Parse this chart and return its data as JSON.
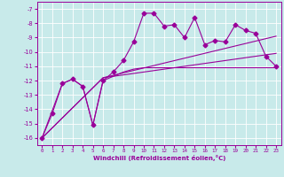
{
  "xlabel": "Windchill (Refroidissement éolien,°C)",
  "background_color": "#c8eaea",
  "grid_color": "#ffffff",
  "line_color": "#990099",
  "xlim": [
    -0.5,
    23.5
  ],
  "ylim": [
    -16.5,
    -6.5
  ],
  "xticks": [
    0,
    1,
    2,
    3,
    4,
    5,
    6,
    7,
    8,
    9,
    10,
    11,
    12,
    13,
    14,
    15,
    16,
    17,
    18,
    19,
    20,
    21,
    22,
    23
  ],
  "yticks": [
    -16,
    -15,
    -14,
    -13,
    -12,
    -11,
    -10,
    -9,
    -8,
    -7
  ],
  "series1_x": [
    0,
    1,
    2,
    3,
    4,
    5,
    6,
    7,
    8,
    9,
    10,
    11,
    12,
    13,
    14,
    15,
    16,
    17,
    18,
    19,
    20,
    21,
    22,
    23
  ],
  "series1_y": [
    -16,
    -14.3,
    -12.2,
    -11.9,
    -12.4,
    -15.1,
    -12.0,
    -11.4,
    -10.6,
    -9.3,
    -7.3,
    -7.3,
    -8.2,
    -8.1,
    -9.0,
    -7.6,
    -9.5,
    -9.2,
    -9.3,
    -8.1,
    -8.5,
    -8.7,
    -10.3,
    -11.0
  ],
  "series2_x": [
    0,
    2,
    3,
    4,
    5,
    6,
    7,
    8,
    9,
    10,
    11,
    12,
    13,
    14,
    15,
    16,
    17,
    18,
    19,
    20,
    21,
    22,
    23
  ],
  "series2_y": [
    -16,
    -12.2,
    -11.9,
    -12.4,
    -15.1,
    -12.0,
    -11.7,
    -11.4,
    -11.2,
    -11.1,
    -11.1,
    -11.1,
    -11.1,
    -11.1,
    -11.1,
    -11.1,
    -11.1,
    -11.1,
    -11.1,
    -11.1,
    -11.1,
    -11.1,
    -11.1
  ],
  "series3_x": [
    0,
    6,
    23
  ],
  "series3_y": [
    -16,
    -11.8,
    -8.9
  ],
  "series4_x": [
    0,
    6,
    23
  ],
  "series4_y": [
    -16,
    -11.8,
    -10.1
  ]
}
